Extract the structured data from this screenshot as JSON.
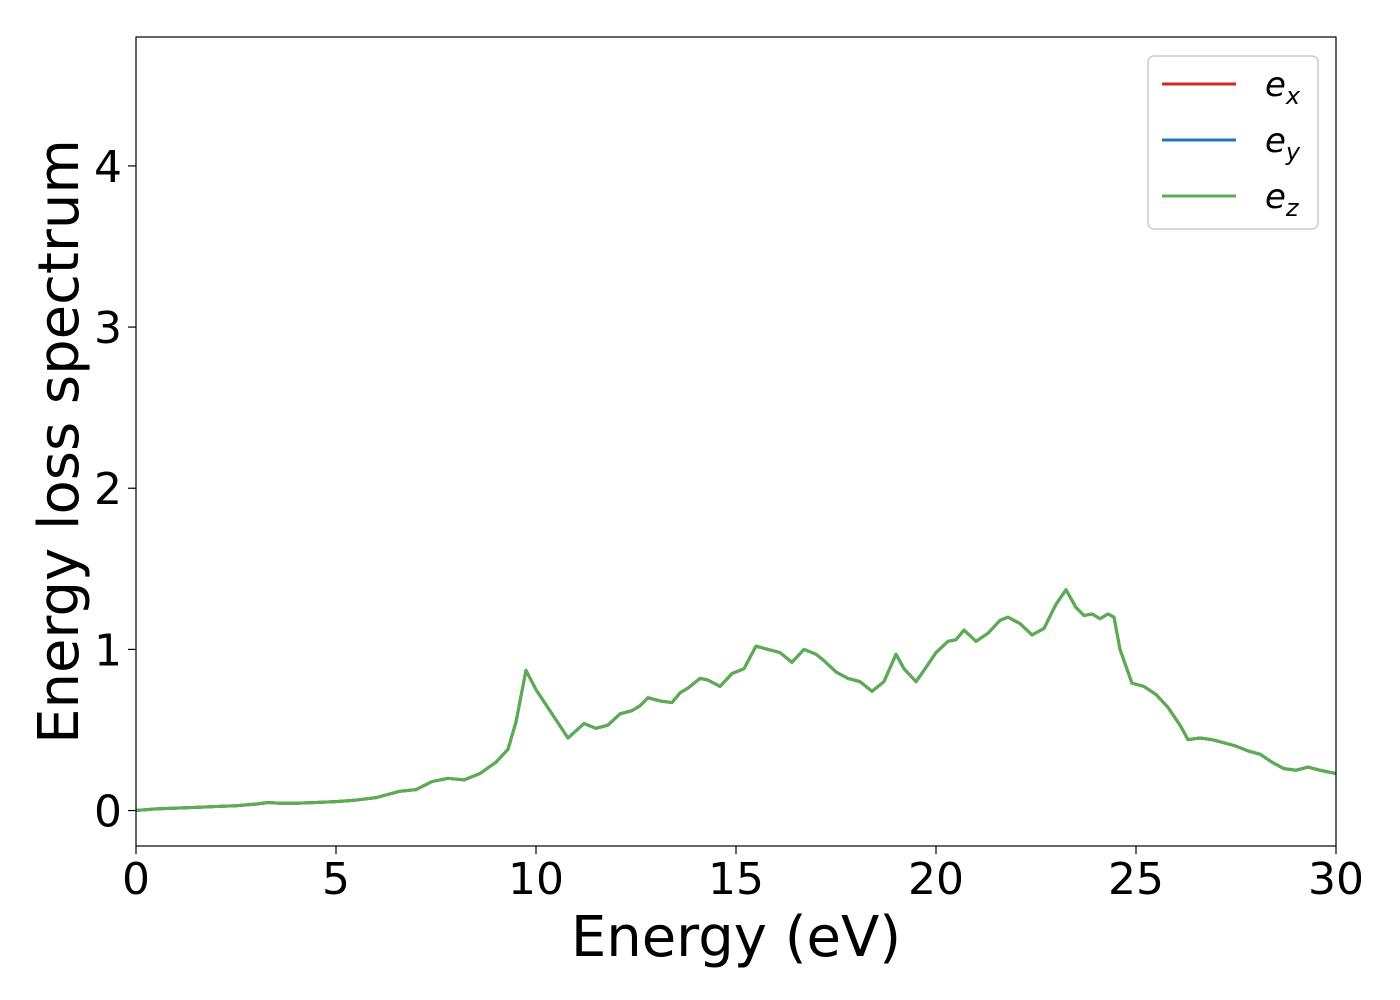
{
  "chart_data": {
    "type": "line",
    "xlabel": "Energy (eV)",
    "ylabel": "Energy loss spectrum",
    "xlim": [
      0,
      30
    ],
    "ylim": [
      -0.22,
      4.8
    ],
    "xticks": [
      0,
      5,
      10,
      15,
      20,
      25,
      30
    ],
    "yticks": [
      0,
      1,
      2,
      3,
      4
    ],
    "xtick_labels": [
      "0",
      "5",
      "10",
      "15",
      "20",
      "25",
      "30"
    ],
    "ytick_labels": [
      "0",
      "1",
      "2",
      "3",
      "4"
    ],
    "grid": false,
    "legend_position": "top-right",
    "series": [
      {
        "name": "e",
        "subscript": "x",
        "color": "#d62728",
        "x": [
          0,
          0.5,
          1,
          1.5,
          2,
          2.5,
          3,
          3.3,
          3.6,
          4,
          4.5,
          5,
          5.5,
          6,
          6.3,
          6.6,
          7,
          7.4,
          7.8,
          8.2,
          8.6,
          9,
          9.3,
          9.5,
          9.75,
          10,
          10.4,
          10.8,
          11.2,
          11.5,
          11.8,
          12.1,
          12.4,
          12.6,
          12.8,
          13.1,
          13.4,
          13.6,
          13.8,
          14.1,
          14.3,
          14.6,
          14.9,
          15.2,
          15.5,
          15.8,
          16.1,
          16.4,
          16.7,
          17,
          17.2,
          17.5,
          17.8,
          18.1,
          18.4,
          18.7,
          19,
          19.2,
          19.5,
          19.7,
          20,
          20.3,
          20.5,
          20.7,
          21,
          21.3,
          21.6,
          21.8,
          22.1,
          22.4,
          22.7,
          23,
          23.25,
          23.5,
          23.7,
          23.9,
          24.1,
          24.3,
          24.45,
          24.6,
          24.9,
          25.2,
          25.5,
          25.8,
          26.1,
          26.3,
          26.6,
          26.9,
          27.2,
          27.5,
          27.8,
          28.1,
          28.4,
          28.7,
          29,
          29.3,
          29.6,
          30
        ],
        "values": [
          0.0,
          0.01,
          0.015,
          0.02,
          0.025,
          0.03,
          0.04,
          0.05,
          0.045,
          0.045,
          0.05,
          0.055,
          0.065,
          0.08,
          0.1,
          0.12,
          0.13,
          0.18,
          0.2,
          0.19,
          0.23,
          0.3,
          0.38,
          0.55,
          0.87,
          0.75,
          0.6,
          0.45,
          0.54,
          0.51,
          0.53,
          0.6,
          0.62,
          0.65,
          0.7,
          0.68,
          0.67,
          0.73,
          0.76,
          0.82,
          0.81,
          0.77,
          0.85,
          0.88,
          1.02,
          1.0,
          0.98,
          0.92,
          1.0,
          0.97,
          0.93,
          0.86,
          0.82,
          0.8,
          0.74,
          0.8,
          0.97,
          0.88,
          0.8,
          0.87,
          0.98,
          1.05,
          1.06,
          1.12,
          1.05,
          1.1,
          1.18,
          1.2,
          1.16,
          1.09,
          1.13,
          1.28,
          1.37,
          1.26,
          1.21,
          1.22,
          1.19,
          1.22,
          1.2,
          1.0,
          0.79,
          0.77,
          0.72,
          0.64,
          0.53,
          0.44,
          0.45,
          0.44,
          0.42,
          0.4,
          0.37,
          0.35,
          0.3,
          0.26,
          0.25,
          0.27,
          0.25,
          0.23
        ]
      },
      {
        "name": "e",
        "subscript": "y",
        "color": "#1f77b4",
        "x": [
          0,
          0.5,
          1,
          1.5,
          2,
          2.5,
          3,
          3.3,
          3.6,
          4,
          4.5,
          5,
          5.5,
          6,
          6.3,
          6.6,
          7,
          7.4,
          7.8,
          8.2,
          8.6,
          9,
          9.3,
          9.5,
          9.75,
          10,
          10.4,
          10.8,
          11.2,
          11.5,
          11.8,
          12.1,
          12.4,
          12.6,
          12.8,
          13.1,
          13.4,
          13.6,
          13.8,
          14.1,
          14.3,
          14.6,
          14.9,
          15.2,
          15.5,
          15.8,
          16.1,
          16.4,
          16.7,
          17,
          17.2,
          17.5,
          17.8,
          18.1,
          18.4,
          18.7,
          19,
          19.2,
          19.5,
          19.7,
          20,
          20.3,
          20.5,
          20.7,
          21,
          21.3,
          21.6,
          21.8,
          22.1,
          22.4,
          22.7,
          23,
          23.25,
          23.5,
          23.7,
          23.9,
          24.1,
          24.3,
          24.45,
          24.6,
          24.9,
          25.2,
          25.5,
          25.8,
          26.1,
          26.3,
          26.6,
          26.9,
          27.2,
          27.5,
          27.8,
          28.1,
          28.4,
          28.7,
          29,
          29.3,
          29.6,
          30
        ],
        "values": [
          0.0,
          0.01,
          0.015,
          0.02,
          0.025,
          0.03,
          0.04,
          0.05,
          0.045,
          0.045,
          0.05,
          0.055,
          0.065,
          0.08,
          0.1,
          0.12,
          0.13,
          0.18,
          0.2,
          0.19,
          0.23,
          0.3,
          0.38,
          0.55,
          0.87,
          0.75,
          0.6,
          0.45,
          0.54,
          0.51,
          0.53,
          0.6,
          0.62,
          0.65,
          0.7,
          0.68,
          0.67,
          0.73,
          0.76,
          0.82,
          0.81,
          0.77,
          0.85,
          0.88,
          1.02,
          1.0,
          0.98,
          0.92,
          1.0,
          0.97,
          0.93,
          0.86,
          0.82,
          0.8,
          0.74,
          0.8,
          0.97,
          0.88,
          0.8,
          0.87,
          0.98,
          1.05,
          1.06,
          1.12,
          1.05,
          1.1,
          1.18,
          1.2,
          1.16,
          1.09,
          1.13,
          1.28,
          1.37,
          1.26,
          1.21,
          1.22,
          1.19,
          1.22,
          1.2,
          1.0,
          0.79,
          0.77,
          0.72,
          0.64,
          0.53,
          0.44,
          0.45,
          0.44,
          0.42,
          0.4,
          0.37,
          0.35,
          0.3,
          0.26,
          0.25,
          0.27,
          0.25,
          0.23
        ]
      },
      {
        "name": "e",
        "subscript": "z",
        "color": "#5aae4f",
        "x": [
          0,
          0.5,
          1,
          1.5,
          2,
          2.5,
          3,
          3.3,
          3.6,
          4,
          4.5,
          5,
          5.5,
          6,
          6.3,
          6.6,
          7,
          7.4,
          7.8,
          8.2,
          8.6,
          9,
          9.3,
          9.5,
          9.75,
          10,
          10.4,
          10.8,
          11.2,
          11.5,
          11.8,
          12.1,
          12.4,
          12.6,
          12.8,
          13.1,
          13.4,
          13.6,
          13.8,
          14.1,
          14.3,
          14.6,
          14.9,
          15.2,
          15.5,
          15.8,
          16.1,
          16.4,
          16.7,
          17,
          17.2,
          17.5,
          17.8,
          18.1,
          18.4,
          18.7,
          19,
          19.2,
          19.5,
          19.7,
          20,
          20.3,
          20.5,
          20.7,
          21,
          21.3,
          21.6,
          21.8,
          22.1,
          22.4,
          22.7,
          23,
          23.25,
          23.5,
          23.7,
          23.9,
          24.1,
          24.3,
          24.45,
          24.6,
          24.9,
          25.2,
          25.5,
          25.8,
          26.1,
          26.3,
          26.6,
          26.9,
          27.2,
          27.5,
          27.8,
          28.1,
          28.4,
          28.7,
          29,
          29.3,
          29.6,
          30
        ],
        "values": [
          0.0,
          0.01,
          0.015,
          0.02,
          0.025,
          0.03,
          0.04,
          0.05,
          0.045,
          0.045,
          0.05,
          0.055,
          0.065,
          0.08,
          0.1,
          0.12,
          0.13,
          0.18,
          0.2,
          0.19,
          0.23,
          0.3,
          0.38,
          0.55,
          0.87,
          0.75,
          0.6,
          0.45,
          0.54,
          0.51,
          0.53,
          0.6,
          0.62,
          0.65,
          0.7,
          0.68,
          0.67,
          0.73,
          0.76,
          0.82,
          0.81,
          0.77,
          0.85,
          0.88,
          1.02,
          1.0,
          0.98,
          0.92,
          1.0,
          0.97,
          0.93,
          0.86,
          0.82,
          0.8,
          0.74,
          0.8,
          0.97,
          0.88,
          0.8,
          0.87,
          0.98,
          1.05,
          1.06,
          1.12,
          1.05,
          1.1,
          1.18,
          1.2,
          1.16,
          1.09,
          1.13,
          1.28,
          1.37,
          1.26,
          1.21,
          1.22,
          1.19,
          1.22,
          1.2,
          1.0,
          0.79,
          0.77,
          0.72,
          0.64,
          0.53,
          0.44,
          0.45,
          0.44,
          0.42,
          0.4,
          0.37,
          0.35,
          0.3,
          0.26,
          0.25,
          0.27,
          0.25,
          0.23
        ]
      }
    ]
  }
}
